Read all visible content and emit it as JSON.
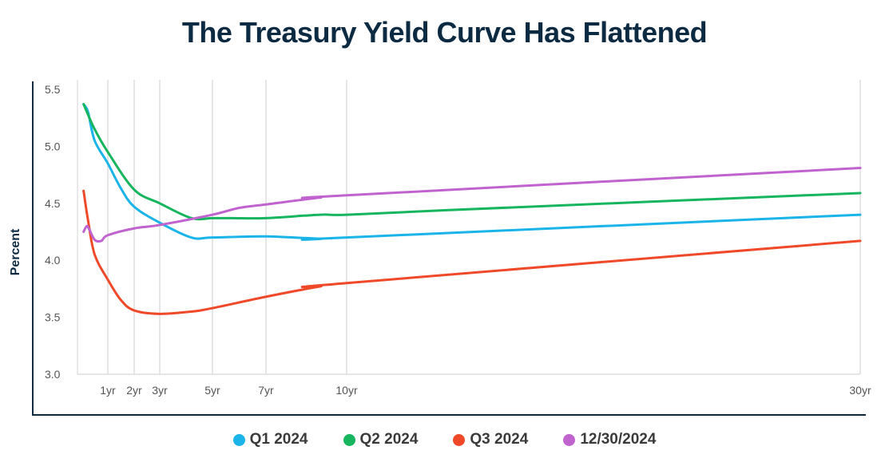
{
  "chart_data": {
    "type": "line",
    "title": "The Treasury Yield Curve Has Flattened",
    "xlabel": "",
    "ylabel": "Percent",
    "ylim": [
      3.0,
      5.5
    ],
    "yticks": [
      "3.0",
      "3.5",
      "4.0",
      "4.5",
      "5.0",
      "5.5"
    ],
    "xticks": [
      {
        "value": 1,
        "label": "1yr"
      },
      {
        "value": 2,
        "label": "2yr"
      },
      {
        "value": 3,
        "label": "3yr"
      },
      {
        "value": 5,
        "label": "5yr"
      },
      {
        "value": 7,
        "label": "7yr"
      },
      {
        "value": 10,
        "label": "10yr"
      },
      {
        "value": 30,
        "label": "30yr"
      }
    ],
    "grid": "vertical",
    "legend": "bottom",
    "series": [
      {
        "name": "Q1 2024",
        "color": "#1ab4e8",
        "x": [
          0.08,
          0.25,
          0.5,
          1,
          1.5,
          2,
          3,
          4.2,
          5,
          7,
          9,
          10,
          30
        ],
        "y": [
          5.37,
          5.3,
          5.05,
          4.85,
          4.63,
          4.47,
          4.33,
          4.2,
          4.2,
          4.21,
          4.19,
          4.2,
          4.4
        ]
      },
      {
        "name": "Q2 2024",
        "color": "#16b55e",
        "x": [
          0.08,
          0.5,
          1,
          2,
          3,
          4.2,
          5,
          5.75,
          7,
          9,
          10,
          13.9,
          30
        ],
        "y": [
          5.37,
          5.15,
          4.95,
          4.62,
          4.5,
          4.37,
          4.37,
          4.37,
          4.37,
          4.4,
          4.4,
          4.44,
          4.59
        ]
      },
      {
        "name": "Q3 2024",
        "color": "#f0492a",
        "x": [
          0.08,
          0.25,
          0.5,
          1,
          1.5,
          2,
          3,
          4.2,
          5,
          7,
          9,
          10,
          30
        ],
        "y": [
          4.61,
          4.35,
          4.05,
          3.83,
          3.65,
          3.56,
          3.53,
          3.55,
          3.58,
          3.68,
          3.77,
          3.8,
          4.17
        ]
      },
      {
        "name": "12/30/2024",
        "color": "#c163cf",
        "x": [
          0.08,
          0.2,
          0.3,
          0.5,
          0.75,
          1,
          2,
          3,
          5,
          6,
          7,
          9,
          10,
          30
        ],
        "y": [
          4.25,
          4.3,
          4.27,
          4.18,
          4.17,
          4.22,
          4.28,
          4.31,
          4.4,
          4.46,
          4.49,
          4.55,
          4.57,
          4.81
        ]
      }
    ]
  }
}
